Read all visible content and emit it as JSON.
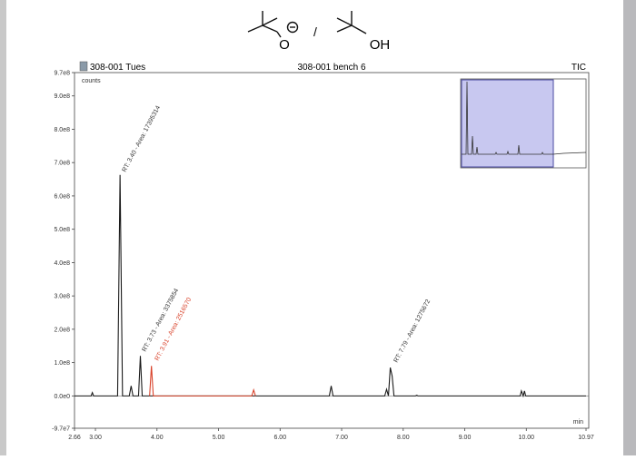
{
  "structures": {
    "left_atom": "O",
    "separator": "/",
    "right_atom": "OH"
  },
  "chart_data": {
    "type": "line",
    "title": "308-001 bench 6",
    "subtitle": "308-001 Tues",
    "trace_label": "TIC",
    "y_label": "counts",
    "x_label": "min",
    "x": [
      2.66,
      2.93,
      2.95,
      2.97,
      3.36,
      3.4,
      3.44,
      3.55,
      3.58,
      3.61,
      3.7,
      3.73,
      3.76,
      3.88,
      3.91,
      3.94,
      5.54,
      5.57,
      5.6,
      6.8,
      6.83,
      6.86,
      7.7,
      7.73,
      7.76,
      7.79,
      7.82,
      7.85,
      8.2,
      8.22,
      8.24,
      9.9,
      9.92,
      9.95,
      9.97,
      9.99,
      10.97
    ],
    "series": [
      {
        "color": "#1a1a1a",
        "values": [
          0,
          0,
          10000000,
          0,
          0,
          663000000,
          0,
          0,
          30000000,
          0,
          0,
          120000000,
          0,
          0,
          0,
          0,
          0,
          0,
          0,
          0,
          30000000,
          0,
          0,
          20000000,
          0,
          85000000,
          60000000,
          0,
          0,
          2000000,
          0,
          0,
          15000000,
          0,
          15000000,
          0,
          0
        ]
      },
      {
        "color": "#d9432b",
        "values": [
          null,
          null,
          null,
          null,
          null,
          null,
          null,
          null,
          null,
          null,
          null,
          null,
          null,
          0,
          90000000,
          0,
          0,
          18000000,
          0,
          null,
          null,
          null,
          null,
          null,
          null,
          null,
          null,
          null,
          null,
          null,
          null,
          null,
          null,
          null,
          null,
          null,
          null
        ]
      }
    ],
    "annotations": [
      {
        "text": "RT: 3.40 - Area: 17395314",
        "color": "#333333"
      },
      {
        "text": "RT: 3.73 - Area: 3375854",
        "color": "#333333"
      },
      {
        "text": "RT: 3.91 - Area: 2516570",
        "color": "#d9432b"
      },
      {
        "text": "RT: 7.79 - Area: 1275672",
        "color": "#333333"
      }
    ],
    "xlim": [
      2.66,
      10.97
    ],
    "xticks": [
      2.66,
      {
        "value": 3,
        "label": "3.00"
      },
      {
        "value": 4,
        "label": "4.00"
      },
      {
        "value": 5,
        "label": "5.00"
      },
      {
        "value": 6,
        "label": "6.00"
      },
      {
        "value": 7,
        "label": "7.00"
      },
      {
        "value": 8,
        "label": "8.00"
      },
      {
        "value": 9,
        "label": "9.00"
      },
      {
        "value": 10,
        "label": "10.00"
      },
      10.97
    ],
    "ylim": [
      -97000000,
      970000000
    ],
    "yticks": [
      {
        "value": -97000000,
        "label": "-9.7e7"
      },
      {
        "value": 0,
        "label": "0.0e0"
      },
      {
        "value": 100000000,
        "label": "1.0e8"
      },
      {
        "value": 200000000,
        "label": "2.0e8"
      },
      {
        "value": 300000000,
        "label": "3.0e8"
      },
      {
        "value": 400000000,
        "label": "4.0e8"
      },
      {
        "value": 500000000,
        "label": "5.0e8"
      },
      {
        "value": 600000000,
        "label": "6.0e8"
      },
      {
        "value": 700000000,
        "label": "7.0e8"
      },
      {
        "value": 800000000,
        "label": "8.0e8"
      },
      {
        "value": 900000000,
        "label": "9.0e8"
      },
      {
        "value": 970000000,
        "label": "9.7e8"
      }
    ]
  }
}
